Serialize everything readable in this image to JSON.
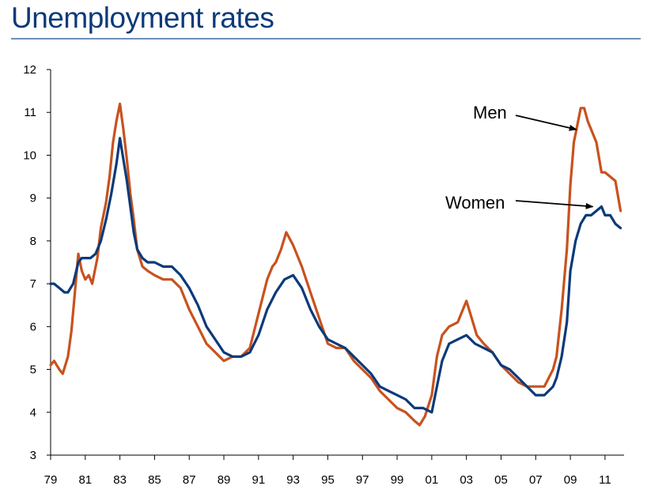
{
  "title": "Unemployment rates",
  "colors": {
    "men": "#c8521e",
    "women": "#0a3a7a",
    "title": "#0a3a7a",
    "rule": "#6f8fb6"
  },
  "chart_data": {
    "type": "line",
    "title": "Unemployment rates",
    "xlabel": "",
    "ylabel": "",
    "ylim": [
      3,
      12
    ],
    "xlim": [
      1979,
      2011.9
    ],
    "y_ticks": [
      "3",
      "4",
      "5",
      "6",
      "7",
      "8",
      "9",
      "10",
      "11",
      "12"
    ],
    "x_ticks": [
      "79",
      "81",
      "83",
      "85",
      "87",
      "89",
      "91",
      "93",
      "95",
      "97",
      "99",
      "01",
      "03",
      "05",
      "07",
      "09",
      "11"
    ],
    "grid": false,
    "legend": "none",
    "annotations": [
      {
        "text": "Men",
        "target_series": "Men"
      },
      {
        "text": "Women",
        "target_series": "Women"
      }
    ],
    "series": [
      {
        "name": "Men",
        "color": "#c8521e",
        "x": [
          1979.0,
          1979.2,
          1979.5,
          1979.7,
          1980.0,
          1980.2,
          1980.4,
          1980.6,
          1980.8,
          1981.0,
          1981.2,
          1981.4,
          1981.7,
          1981.9,
          1982.2,
          1982.4,
          1982.6,
          1982.8,
          1983.0,
          1983.2,
          1983.4,
          1983.6,
          1983.8,
          1984.0,
          1984.3,
          1984.6,
          1985.0,
          1985.5,
          1986.0,
          1986.5,
          1987.0,
          1987.5,
          1988.0,
          1988.5,
          1989.0,
          1989.5,
          1990.0,
          1990.5,
          1991.0,
          1991.5,
          1991.8,
          1992.0,
          1992.3,
          1992.6,
          1993.0,
          1993.5,
          1994.0,
          1994.5,
          1995.0,
          1995.5,
          1996.0,
          1996.5,
          1997.0,
          1997.5,
          1998.0,
          1998.5,
          1999.0,
          1999.5,
          2000.0,
          2000.3,
          2000.6,
          2001.0,
          2001.3,
          2001.6,
          2002.0,
          2002.5,
          2003.0,
          2003.3,
          2003.6,
          2004.0,
          2004.5,
          2005.0,
          2005.5,
          2006.0,
          2006.5,
          2007.0,
          2007.5,
          2008.0,
          2008.2,
          2008.5,
          2008.8,
          2009.0,
          2009.2,
          2009.4,
          2009.6,
          2009.8,
          2010.0,
          2010.2,
          2010.5,
          2010.8,
          2011.0,
          2011.3,
          2011.6,
          2011.9
        ],
        "values": [
          5.1,
          5.2,
          5.0,
          4.9,
          5.3,
          5.9,
          6.8,
          7.7,
          7.3,
          7.1,
          7.2,
          7.0,
          7.6,
          8.3,
          8.9,
          9.5,
          10.3,
          10.8,
          11.2,
          10.6,
          9.9,
          9.1,
          8.5,
          7.8,
          7.4,
          7.3,
          7.2,
          7.1,
          7.1,
          6.9,
          6.4,
          6.0,
          5.6,
          5.4,
          5.2,
          5.3,
          5.3,
          5.5,
          6.3,
          7.1,
          7.4,
          7.5,
          7.8,
          8.2,
          7.9,
          7.4,
          6.8,
          6.2,
          5.6,
          5.5,
          5.5,
          5.2,
          5.0,
          4.8,
          4.5,
          4.3,
          4.1,
          4.0,
          3.8,
          3.7,
          3.9,
          4.4,
          5.3,
          5.8,
          6.0,
          6.1,
          6.6,
          6.2,
          5.8,
          5.6,
          5.4,
          5.1,
          4.9,
          4.7,
          4.6,
          4.6,
          4.6,
          5.0,
          5.3,
          6.4,
          7.8,
          9.3,
          10.3,
          10.7,
          11.1,
          11.1,
          10.8,
          10.6,
          10.3,
          9.6,
          9.6,
          9.5,
          9.4,
          8.7
        ]
      },
      {
        "name": "Women",
        "color": "#0a3a7a",
        "x": [
          1979.0,
          1979.2,
          1979.5,
          1979.8,
          1980.0,
          1980.3,
          1980.6,
          1980.8,
          1981.0,
          1981.3,
          1981.6,
          1981.9,
          1982.2,
          1982.5,
          1982.8,
          1983.0,
          1983.2,
          1983.4,
          1983.6,
          1983.8,
          1984.0,
          1984.3,
          1984.6,
          1985.0,
          1985.5,
          1986.0,
          1986.5,
          1987.0,
          1987.5,
          1988.0,
          1988.5,
          1989.0,
          1989.5,
          1990.0,
          1990.5,
          1991.0,
          1991.5,
          1992.0,
          1992.5,
          1993.0,
          1993.5,
          1994.0,
          1994.5,
          1995.0,
          1995.5,
          1996.0,
          1996.5,
          1997.0,
          1997.5,
          1998.0,
          1998.5,
          1999.0,
          1999.5,
          2000.0,
          2000.5,
          2001.0,
          2001.3,
          2001.6,
          2002.0,
          2002.5,
          2003.0,
          2003.5,
          2004.0,
          2004.5,
          2005.0,
          2005.5,
          2006.0,
          2006.5,
          2007.0,
          2007.5,
          2008.0,
          2008.2,
          2008.5,
          2008.8,
          2009.0,
          2009.3,
          2009.6,
          2009.9,
          2010.2,
          2010.5,
          2010.8,
          2011.0,
          2011.3,
          2011.6,
          2011.9
        ],
        "values": [
          7.0,
          7.0,
          6.9,
          6.8,
          6.8,
          7.0,
          7.5,
          7.6,
          7.6,
          7.6,
          7.7,
          8.0,
          8.5,
          9.1,
          9.8,
          10.4,
          9.9,
          9.4,
          8.8,
          8.2,
          7.8,
          7.6,
          7.5,
          7.5,
          7.4,
          7.4,
          7.2,
          6.9,
          6.5,
          6.0,
          5.7,
          5.4,
          5.3,
          5.3,
          5.4,
          5.8,
          6.4,
          6.8,
          7.1,
          7.2,
          6.9,
          6.4,
          6.0,
          5.7,
          5.6,
          5.5,
          5.3,
          5.1,
          4.9,
          4.6,
          4.5,
          4.4,
          4.3,
          4.1,
          4.1,
          4.0,
          4.6,
          5.2,
          5.6,
          5.7,
          5.8,
          5.6,
          5.5,
          5.4,
          5.1,
          5.0,
          4.8,
          4.6,
          4.4,
          4.4,
          4.6,
          4.8,
          5.3,
          6.1,
          7.3,
          8.0,
          8.4,
          8.6,
          8.6,
          8.7,
          8.8,
          8.6,
          8.6,
          8.4,
          8.3
        ]
      }
    ]
  }
}
